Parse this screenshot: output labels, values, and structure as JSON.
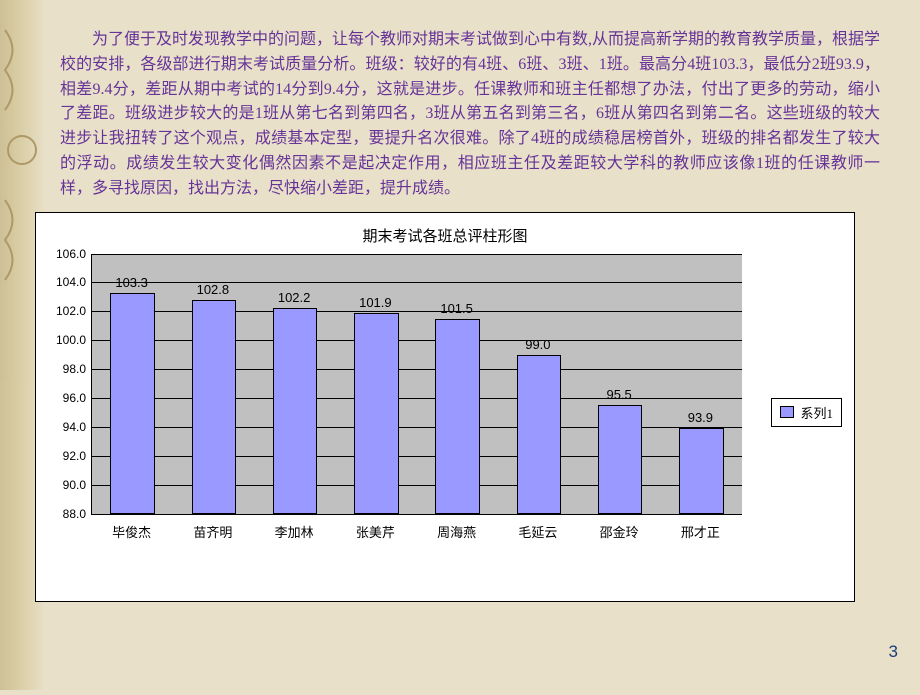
{
  "paragraph": "　　为了便于及时发现教学中的问题，让每个教师对期末考试做到心中有数,从而提高新学期的教育教学质量，根据学校的安排，各级部进行期末考试质量分析。班级：较好的有4班、6班、3班、1班。最高分4班103.3，最低分2班93.9，相差9.4分，差距从期中考试的14分到9.4分，这就是进步。任课教师和班主任都想了办法，付出了更多的劳动，缩小了差距。班级进步较大的是1班从第七名到第四名，3班从第五名到第三名，6班从第四名到第二名。这些班级的较大进步让我扭转了这个观点，成绩基本定型，要提升名次很难。除了4班的成绩稳居榜首外，班级的排名都发生了较大的浮动。成绩发生较大变化偶然因素不是起决定作用，相应班主任及差距较大学科的教师应该像1班的任课教师一样，多寻找原因，找出方法，尽快缩小差距，提升成绩。",
  "chart": {
    "type": "bar",
    "title": "期末考试各班总评柱形图",
    "categories": [
      "毕俊杰",
      "苗齐明",
      "李加林",
      "张美芹",
      "周海燕",
      "毛延云",
      "邵金玲",
      "邢才正"
    ],
    "values": [
      103.3,
      102.8,
      102.2,
      101.9,
      101.5,
      99.0,
      95.5,
      93.9
    ],
    "bar_color": "#9999ff",
    "bar_border": "#000000",
    "plot_bg": "#c0c0c0",
    "background_color": "#ffffff",
    "border_color": "#000000",
    "ylim": [
      88.0,
      106.0
    ],
    "ytick_step": 2.0,
    "ytick_format": "0.0",
    "grid_color": "#000000",
    "title_fontsize": 15,
    "label_fontsize": 12,
    "bar_width_ratio": 0.55,
    "legend": {
      "label": "系列1",
      "swatch": "#9999ff"
    }
  },
  "page_number": "3"
}
